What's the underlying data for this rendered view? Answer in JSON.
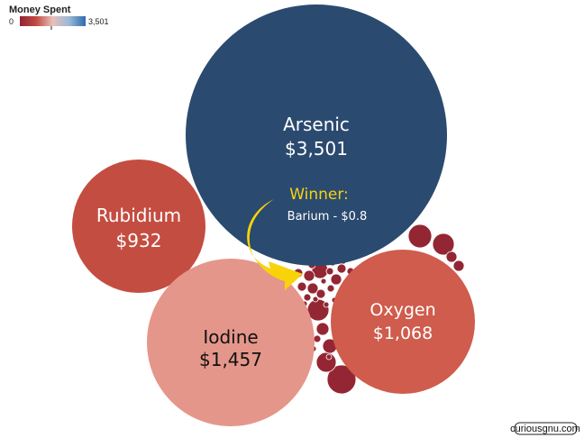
{
  "chart_data": {
    "type": "bubble",
    "legend": {
      "title": "Money Spent",
      "min_label": "0",
      "max_label": "3,501",
      "min_value": 0,
      "max_value": 3501,
      "colors": [
        "#8f2432",
        "#c24b45",
        "#e8c1ba",
        "#9ab8d6",
        "#2f6aae"
      ],
      "placement": "top-left"
    },
    "bubbles": [
      {
        "name": "Arsenic",
        "value_label": "$3,501",
        "value": 3501,
        "color": "#2b4a6f",
        "text_color": "#ffffff"
      },
      {
        "name": "Iodine",
        "value_label": "$1,457",
        "value": 1457,
        "color": "#e5968a",
        "text_color": "#111111"
      },
      {
        "name": "Oxygen",
        "value_label": "$1,068",
        "value": 1068,
        "color": "#cf5c4c",
        "text_color": "#ffffff"
      },
      {
        "name": "Rubidium",
        "value_label": "$932",
        "value": 932,
        "color": "#c44d41",
        "text_color": "#ffffff"
      }
    ],
    "annotation": {
      "heading": "Winner:",
      "text": "Barium - $0.8",
      "heading_color": "#f5d40f",
      "text_color": "#ffffff",
      "arrow_color": "#f9d30a"
    },
    "small_bubble_color": "#942634"
  },
  "watermark": "curiousgnu.com"
}
